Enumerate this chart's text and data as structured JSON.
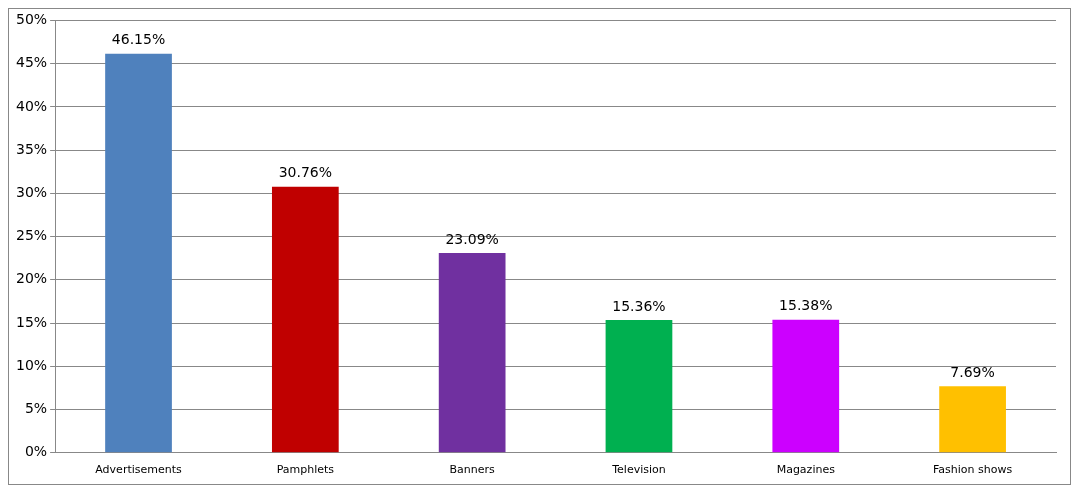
{
  "chart_data": {
    "type": "bar",
    "categories": [
      "Advertisements",
      "Pamphlets",
      "Banners",
      "Television",
      "Magazines",
      "Fashion shows"
    ],
    "values": [
      46.15,
      30.76,
      23.09,
      15.36,
      15.38,
      7.69
    ],
    "colors": [
      "#4f81bd",
      "#c00000",
      "#7030a0",
      "#00b050",
      "#cc00ff",
      "#ffc000"
    ],
    "value_labels": [
      "46.15%",
      "30.76%",
      "23.09%",
      "15.36%",
      "15.38%",
      "7.69%"
    ],
    "ylim": [
      0,
      50
    ],
    "yticks": [
      {
        "value": 0,
        "label": "0%"
      },
      {
        "value": 5,
        "label": "5%"
      },
      {
        "value": 10,
        "label": "10%"
      },
      {
        "value": 15,
        "label": "15%"
      },
      {
        "value": 20,
        "label": "20%"
      },
      {
        "value": 25,
        "label": "25%"
      },
      {
        "value": 30,
        "label": "30%"
      },
      {
        "value": 35,
        "label": "35%"
      },
      {
        "value": 40,
        "label": "40%"
      },
      {
        "value": 45,
        "label": "45%"
      },
      {
        "value": 50,
        "label": "50%"
      }
    ],
    "grid": "y",
    "legend": false
  }
}
